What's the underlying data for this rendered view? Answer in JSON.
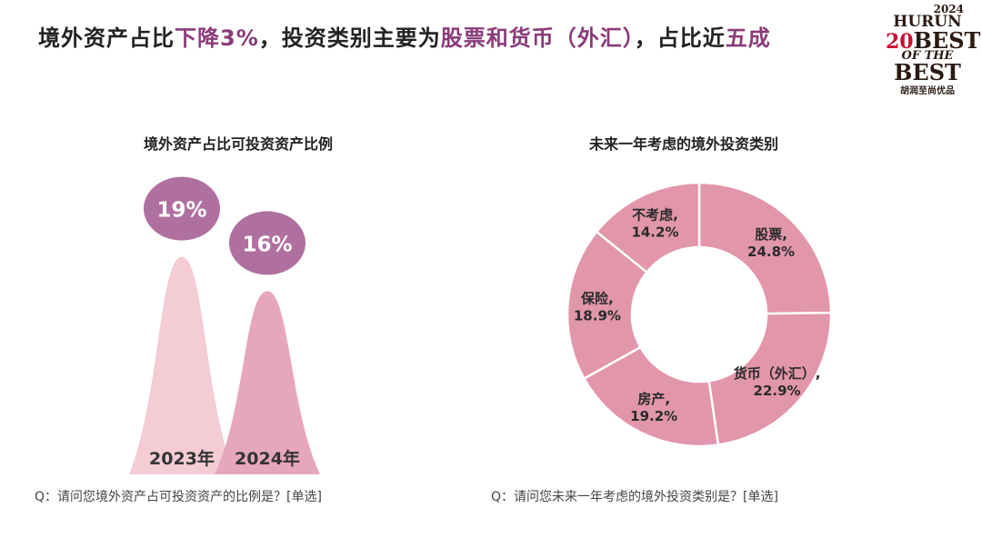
{
  "title": {
    "part1": "境外资产占比",
    "part2": "下降3%",
    "part3": "，投资类别主要为",
    "part4": "股票和货币（外汇）",
    "part5": "，占比近",
    "part6": "五成"
  },
  "logo": {
    "year": "2024",
    "brand": "HURUN",
    "line1": "BEST",
    "line2": "OF THE",
    "line3": "BEST",
    "num": "20",
    "cn": "胡润至尚优品"
  },
  "colors": {
    "accent": "#8a3a79",
    "bubble": "#b0709f",
    "shape2023": "#f3ccd5",
    "shape2024": "#e6a7bd",
    "donut": "#e296ab"
  },
  "left": {
    "subtitle": "境外资产占比可投资资产比例",
    "question": "Q：请问您境外资产占可投资资产的比例是？[单选]"
  },
  "right": {
    "subtitle": "未来一年考虑的境外投资类别",
    "question": "Q：请问您未来一年考虑的境外投资类别是？[单选]"
  },
  "chart_data": [
    {
      "type": "bar",
      "title": "境外资产占比可投资资产比例",
      "categories": [
        "2023年",
        "2024年"
      ],
      "values": [
        19,
        16
      ],
      "value_labels": [
        "19%",
        "16%"
      ],
      "ylim": [
        0,
        25
      ]
    },
    {
      "type": "pie",
      "title": "未来一年考虑的境外投资类别",
      "labels": [
        "股票,",
        "货币（外汇）,",
        "房产,",
        "保险,",
        "不考虑,"
      ],
      "values": [
        24.8,
        22.9,
        19.2,
        18.9,
        14.2
      ],
      "value_labels": [
        "24.8%",
        "22.9%",
        "19.2%",
        "18.9%",
        "14.2%"
      ]
    }
  ]
}
